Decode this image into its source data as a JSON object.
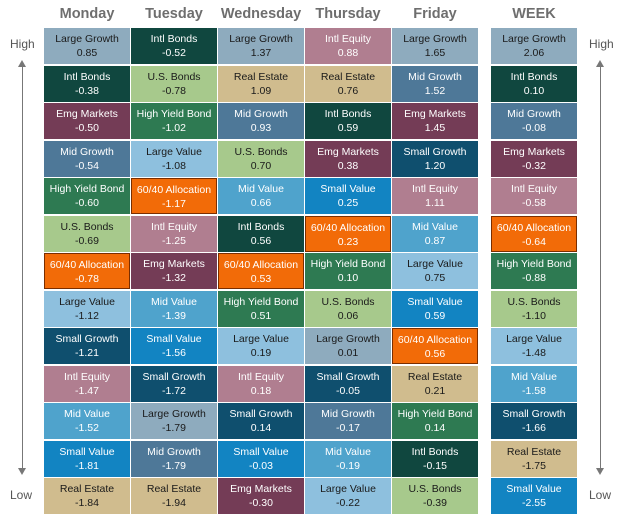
{
  "chart_data": {
    "type": "table",
    "columns": [
      "Monday",
      "Tuesday",
      "Wednesday",
      "Thursday",
      "Friday",
      "WEEK"
    ],
    "axis_labels": {
      "high": "High",
      "low": "Low"
    },
    "category_colors": {
      "Large Growth": "#8EABBE",
      "Intl Bonds": "#10473F",
      "Emg Markets": "#743C56",
      "Mid Growth": "#4E7898",
      "High Yield Bond": "#2E7A52",
      "U.S. Bonds": "#A7C98C",
      "Large Value": "#8EC0DE",
      "Small Growth": "#0F4F6E",
      "Intl Equity": "#B07E90",
      "Mid Value": "#4FA3CC",
      "Small Value": "#1284C2",
      "Real Estate": "#D0BC8E",
      "60/40 Allocation": "#F26B08"
    },
    "light_text_categories": [
      "Large Growth",
      "U.S. Bonds",
      "Large Value",
      "Real Estate"
    ],
    "data": [
      [
        {
          "name": "Large Growth",
          "value": "0.85"
        },
        {
          "name": "Intl Bonds",
          "value": "-0.38"
        },
        {
          "name": "Emg Markets",
          "value": "-0.50"
        },
        {
          "name": "Mid Growth",
          "value": "-0.54"
        },
        {
          "name": "High Yield Bond",
          "value": "-0.60"
        },
        {
          "name": "U.S. Bonds",
          "value": "-0.69"
        },
        {
          "name": "60/40 Allocation",
          "value": "-0.78"
        },
        {
          "name": "Large Value",
          "value": "-1.12"
        },
        {
          "name": "Small Growth",
          "value": "-1.21"
        },
        {
          "name": "Intl Equity",
          "value": "-1.47"
        },
        {
          "name": "Mid Value",
          "value": "-1.52"
        },
        {
          "name": "Small Value",
          "value": "-1.81"
        },
        {
          "name": "Real Estate",
          "value": "-1.84"
        }
      ],
      [
        {
          "name": "Intl Bonds",
          "value": "-0.52"
        },
        {
          "name": "U.S. Bonds",
          "value": "-0.78"
        },
        {
          "name": "High Yield Bond",
          "value": "-1.02"
        },
        {
          "name": "Large Value",
          "value": "-1.08"
        },
        {
          "name": "60/40 Allocation",
          "value": "-1.17"
        },
        {
          "name": "Intl Equity",
          "value": "-1.25"
        },
        {
          "name": "Emg Markets",
          "value": "-1.32"
        },
        {
          "name": "Mid Value",
          "value": "-1.39"
        },
        {
          "name": "Small Value",
          "value": "-1.56"
        },
        {
          "name": "Small Growth",
          "value": "-1.72"
        },
        {
          "name": "Large Growth",
          "value": "-1.79"
        },
        {
          "name": "Mid Growth",
          "value": "-1.79"
        },
        {
          "name": "Real Estate",
          "value": "-1.94"
        }
      ],
      [
        {
          "name": "Large Growth",
          "value": "1.37"
        },
        {
          "name": "Real Estate",
          "value": "1.09"
        },
        {
          "name": "Mid Growth",
          "value": "0.93"
        },
        {
          "name": "U.S. Bonds",
          "value": "0.70"
        },
        {
          "name": "Mid Value",
          "value": "0.66"
        },
        {
          "name": "Intl Bonds",
          "value": "0.56"
        },
        {
          "name": "60/40 Allocation",
          "value": "0.53"
        },
        {
          "name": "High Yield Bond",
          "value": "0.51"
        },
        {
          "name": "Large Value",
          "value": "0.19"
        },
        {
          "name": "Intl Equity",
          "value": "0.18"
        },
        {
          "name": "Small Growth",
          "value": "0.14"
        },
        {
          "name": "Small Value",
          "value": "-0.03"
        },
        {
          "name": "Emg Markets",
          "value": "-0.30"
        }
      ],
      [
        {
          "name": "Intl Equity",
          "value": "0.88"
        },
        {
          "name": "Real Estate",
          "value": "0.76"
        },
        {
          "name": "Intl Bonds",
          "value": "0.59"
        },
        {
          "name": "Emg Markets",
          "value": "0.38"
        },
        {
          "name": "Small Value",
          "value": "0.25"
        },
        {
          "name": "60/40 Allocation",
          "value": "0.23"
        },
        {
          "name": "High Yield Bond",
          "value": "0.10"
        },
        {
          "name": "U.S. Bonds",
          "value": "0.06"
        },
        {
          "name": "Large Growth",
          "value": "0.01"
        },
        {
          "name": "Small Growth",
          "value": "-0.05"
        },
        {
          "name": "Mid Growth",
          "value": "-0.17"
        },
        {
          "name": "Mid Value",
          "value": "-0.19"
        },
        {
          "name": "Large Value",
          "value": "-0.22"
        }
      ],
      [
        {
          "name": "Large Growth",
          "value": "1.65"
        },
        {
          "name": "Mid Growth",
          "value": "1.52"
        },
        {
          "name": "Emg Markets",
          "value": "1.45"
        },
        {
          "name": "Small Growth",
          "value": "1.20"
        },
        {
          "name": "Intl Equity",
          "value": "1.11"
        },
        {
          "name": "Mid Value",
          "value": "0.87"
        },
        {
          "name": "Large Value",
          "value": "0.75"
        },
        {
          "name": "Small Value",
          "value": "0.59"
        },
        {
          "name": "60/40 Allocation",
          "value": "0.56"
        },
        {
          "name": "Real Estate",
          "value": "0.21"
        },
        {
          "name": "High Yield Bond",
          "value": "0.14"
        },
        {
          "name": "Intl Bonds",
          "value": "-0.15"
        },
        {
          "name": "U.S. Bonds",
          "value": "-0.39"
        }
      ],
      [
        {
          "name": "Large Growth",
          "value": "2.06"
        },
        {
          "name": "Intl Bonds",
          "value": "0.10"
        },
        {
          "name": "Mid Growth",
          "value": "-0.08"
        },
        {
          "name": "Emg Markets",
          "value": "-0.32"
        },
        {
          "name": "Intl Equity",
          "value": "-0.58"
        },
        {
          "name": "60/40 Allocation",
          "value": "-0.64"
        },
        {
          "name": "High Yield Bond",
          "value": "-0.88"
        },
        {
          "name": "U.S. Bonds",
          "value": "-1.10"
        },
        {
          "name": "Large Value",
          "value": "-1.48"
        },
        {
          "name": "Mid Value",
          "value": "-1.58"
        },
        {
          "name": "Small Growth",
          "value": "-1.66"
        },
        {
          "name": "Real Estate",
          "value": "-1.75"
        },
        {
          "name": "Small Value",
          "value": "-2.55"
        }
      ]
    ]
  }
}
